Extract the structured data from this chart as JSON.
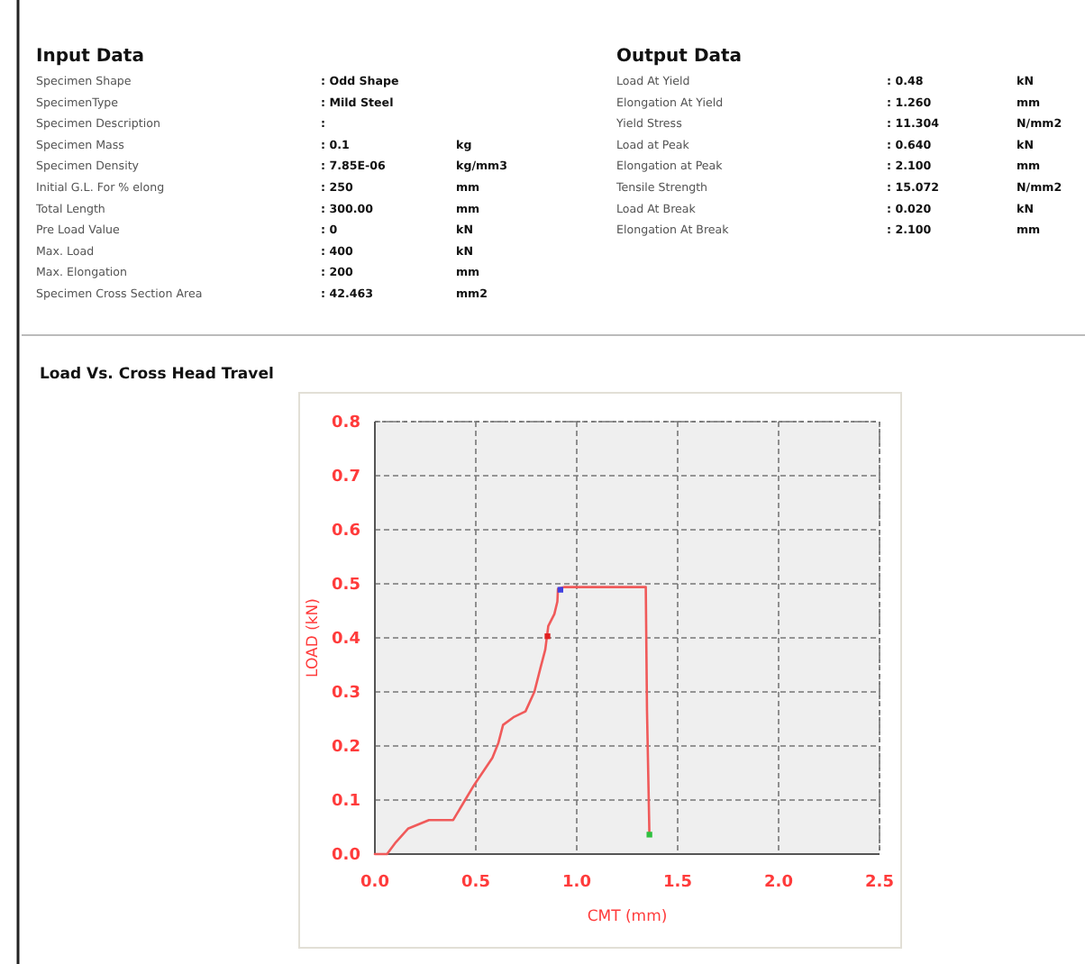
{
  "chart_data": [
    {
      "type": "other",
      "title": "Input Data",
      "annotations": [
        "Specimen Shape",
        ": Odd Shape",
        null,
        "SpecimenType",
        ": Mild Steel",
        null,
        "Specimen Description",
        ":",
        null,
        "Specimen Mass",
        ": 0.1",
        "kg",
        "Specimen Density",
        ": 7.85E-06",
        "kg/mm3",
        "Initial G.L. For % elong",
        ": 250",
        "mm",
        "Total Length",
        ": 300.00",
        "mm",
        "Pre Load Value",
        ": 0",
        "kN",
        "Max. Load",
        ": 400",
        "kN",
        "Max. Elongation",
        ": 200",
        "mm",
        "Specimen Cross Section Area",
        ": 42.463",
        "mm2"
      ]
    },
    {
      "type": "other",
      "title": "Output Data",
      "annotations": [
        "Load At Yield",
        ": 0.48",
        "kN",
        "Elongation At Yield",
        ": 1.260",
        "mm",
        "Yield Stress",
        ": 11.304",
        "N/mm2",
        "Load at Peak",
        ": 0.640",
        "kN",
        "Elongation at Peak",
        ": 2.100",
        "mm",
        "Tensile Strength",
        ": 15.072",
        "N/mm2",
        "Load At Break",
        ": 0.020",
        "kN",
        "Elongation At Break",
        ": 2.100",
        "mm"
      ]
    },
    {
      "type": "line",
      "title": "Load Vs. Cross Head Travel",
      "xlabel": "CMT (mm)",
      "ylabel": "LOAD (kN)",
      "xlim": [
        0,
        2.5
      ],
      "ylim": [
        0,
        0.8
      ],
      "xticks": [
        {
          "value": 0,
          "label": "0.0"
        },
        0.5,
        {
          "value": 1,
          "label": "1.0"
        },
        1.5,
        {
          "value": 2,
          "label": "2.0"
        },
        2.5
      ],
      "yticks": [
        {
          "value": 0,
          "label": "0.0"
        },
        0.1,
        0.2,
        0.3,
        0.4,
        0.5,
        0.6,
        0.7,
        0.8
      ],
      "grid": true,
      "line_style": "solid",
      "series": [
        {
          "color": "#f05a5a",
          "x": [
            0,
            0.06,
            0.104,
            0.164,
            0.268,
            0.388,
            0.447,
            0.492,
            0.582,
            0.612,
            0.635,
            0.686,
            0.746,
            0.79,
            0.82,
            0.844,
            0.859,
            0.889,
            0.904,
            0.907,
            0.94,
            1.342,
            1.348,
            1.36
          ],
          "values": [
            0,
            0,
            0.022,
            0.047,
            0.063,
            0.063,
            0.1,
            0.128,
            0.178,
            0.206,
            0.239,
            0.253,
            0.264,
            0.3,
            0.344,
            0.378,
            0.422,
            0.444,
            0.467,
            0.491,
            0.494,
            0.494,
            0.267,
            0.036
          ]
        },
        {
          "type": "scatter",
          "marker": "square",
          "x": [
            0.919,
            0.855,
            1.36
          ],
          "values": [
            0.489,
            0.403,
            0.036
          ],
          "colors": [
            "#4040e0",
            "#e02020",
            "#30c040"
          ]
        }
      ]
    }
  ]
}
